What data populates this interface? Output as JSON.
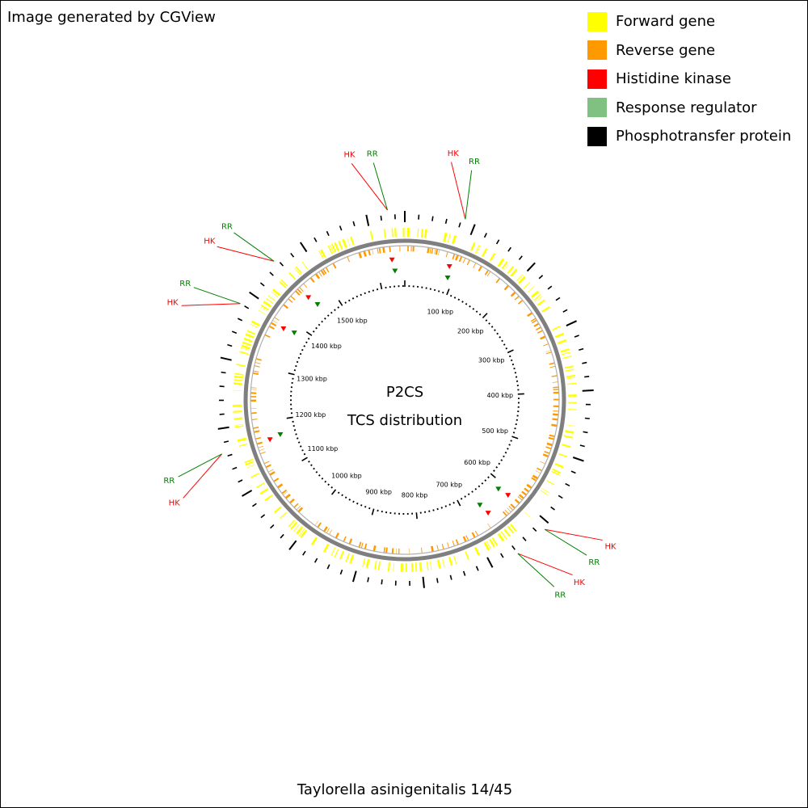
{
  "credit": "Image generated by CGView",
  "legend": [
    {
      "label": "Forward gene",
      "color": "#ffff00"
    },
    {
      "label": "Reverse gene",
      "color": "#ff9900"
    },
    {
      "label": "Histidine kinase",
      "color": "#ff0000"
    },
    {
      "label": "Response regulator",
      "color": "#80c080"
    },
    {
      "label": "Phosphotransfer protein",
      "color": "#000000"
    }
  ],
  "map": {
    "title_line1": "P2CS",
    "title_line2": "TCS distribution",
    "genome_length_kbp": 1654,
    "scale_labels": [
      "100 kbp",
      "200 kbp",
      "300 kbp",
      "400 kbp",
      "500 kbp",
      "600 kbp",
      "700 kbp",
      "800 kbp",
      "900 kbp",
      "1000 kbp",
      "1100 kbp",
      "1200 kbp",
      "1300 kbp",
      "1400 kbp",
      "1500 kbp"
    ],
    "scale_values_kbp": [
      100,
      200,
      300,
      400,
      500,
      600,
      700,
      800,
      900,
      1000,
      1100,
      1200,
      1300,
      1400,
      1500
    ],
    "tcs_loci_kbp": [
      1630,
      85,
      1455,
      1380,
      1165,
      610,
      660
    ],
    "hk_label": "HK",
    "rr_label": "RR",
    "hk_color": "#ff0000",
    "rr_color": "#008000",
    "backbone_color": "#7f7f7f",
    "forward_color": "#ffff00",
    "reverse_color": "#ff9900"
  },
  "caption": "Taylorella asinigenitalis 14/45"
}
